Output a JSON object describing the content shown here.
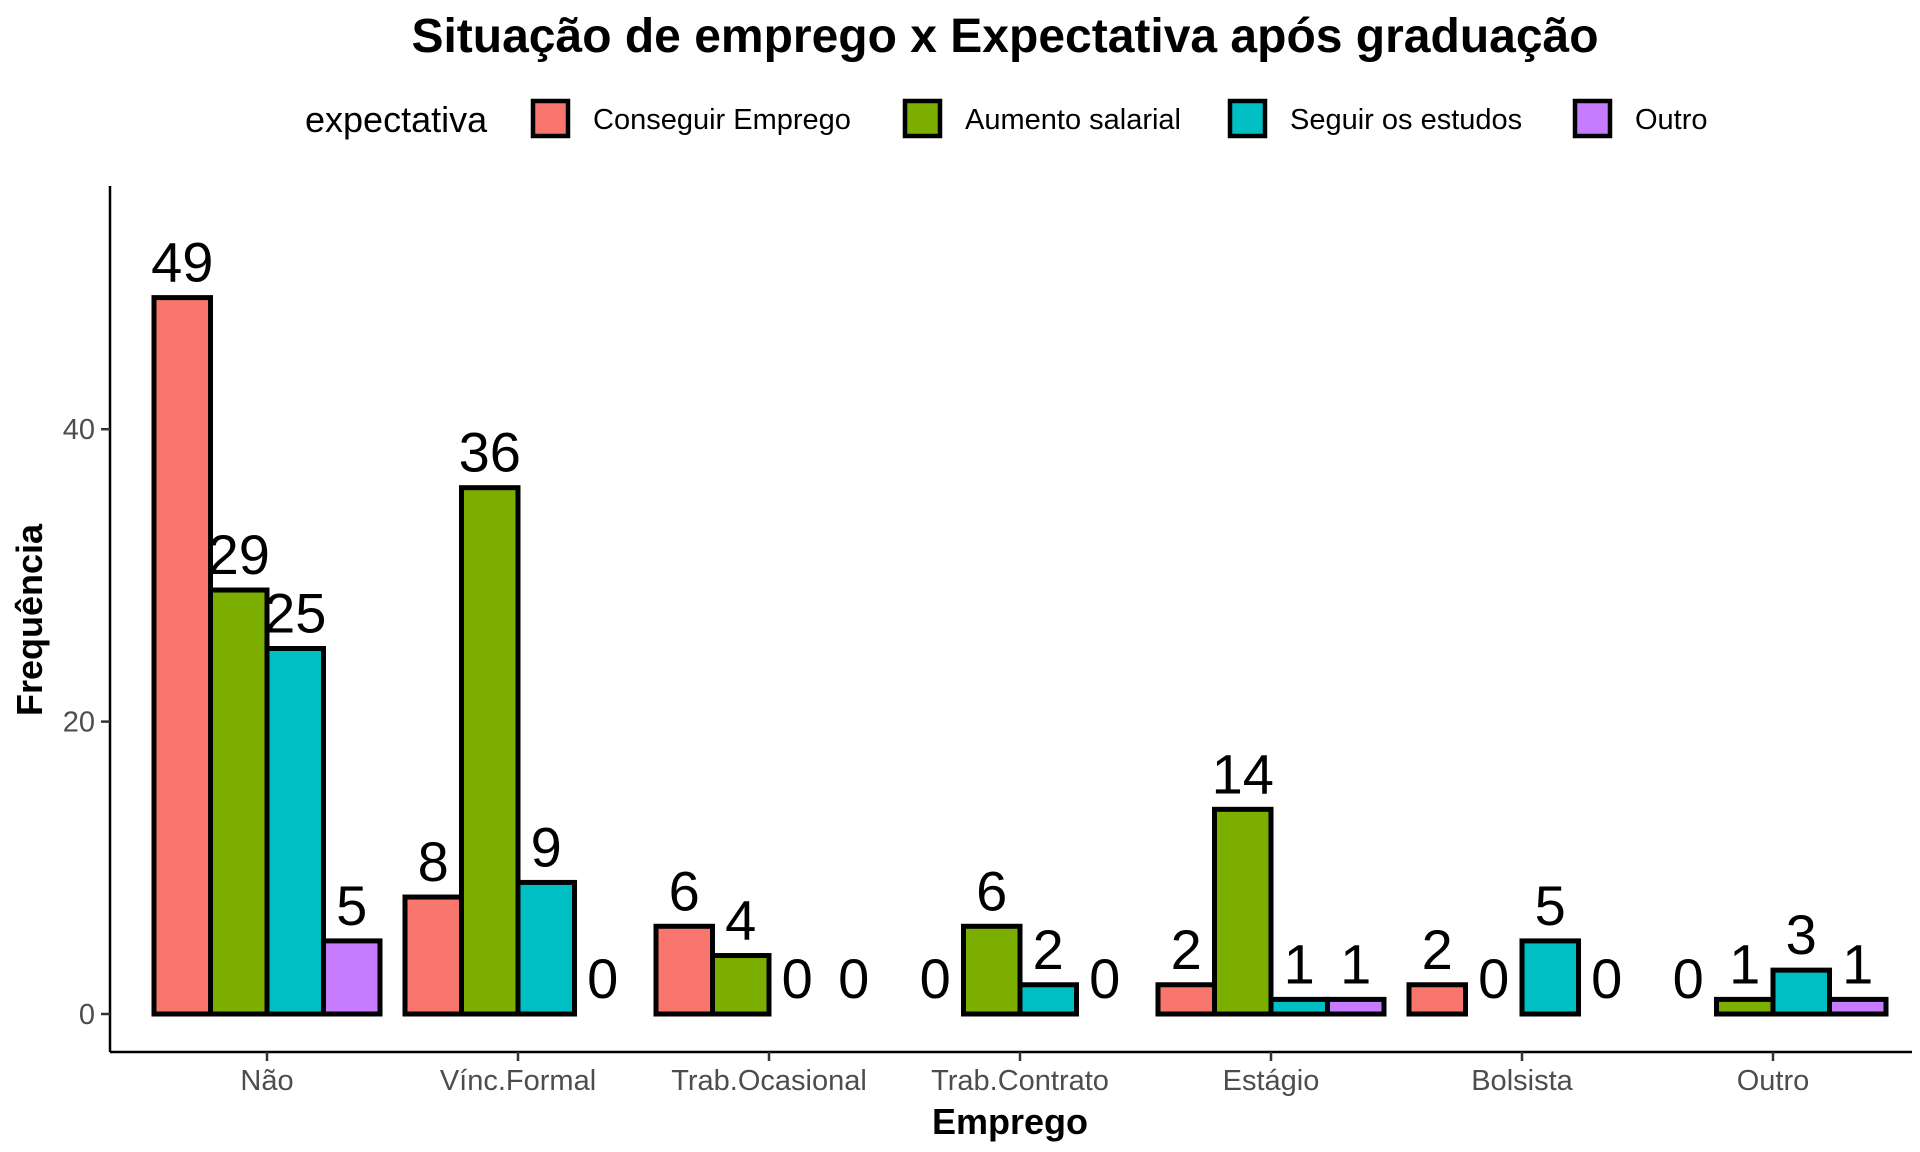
{
  "chart_data": {
    "type": "bar",
    "title": "Situação de emprego x Expectativa após graduação",
    "xlabel": "Emprego",
    "ylabel": "Frequência",
    "legend_title": "expectativa",
    "legend_position": "top",
    "grid": false,
    "ylim": [
      0,
      55
    ],
    "yticks": [
      0,
      20,
      40
    ],
    "categories": [
      "Não",
      "Vínc.Formal",
      "Trab.Ocasional",
      "Trab.Contrato",
      "Estágio",
      "Bolsista",
      "Outro"
    ],
    "series": [
      {
        "name": "Conseguir Emprego",
        "color": "#F8766D",
        "values": [
          49,
          8,
          6,
          0,
          2,
          2,
          0
        ]
      },
      {
        "name": "Aumento salarial",
        "color": "#7CAE00",
        "values": [
          29,
          36,
          4,
          6,
          14,
          0,
          1
        ]
      },
      {
        "name": "Seguir os estudos",
        "color": "#00BFC4",
        "values": [
          25,
          9,
          0,
          2,
          1,
          5,
          3
        ]
      },
      {
        "name": "Outro",
        "color": "#C77CFF",
        "values": [
          5,
          0,
          0,
          0,
          1,
          0,
          1
        ]
      }
    ]
  }
}
